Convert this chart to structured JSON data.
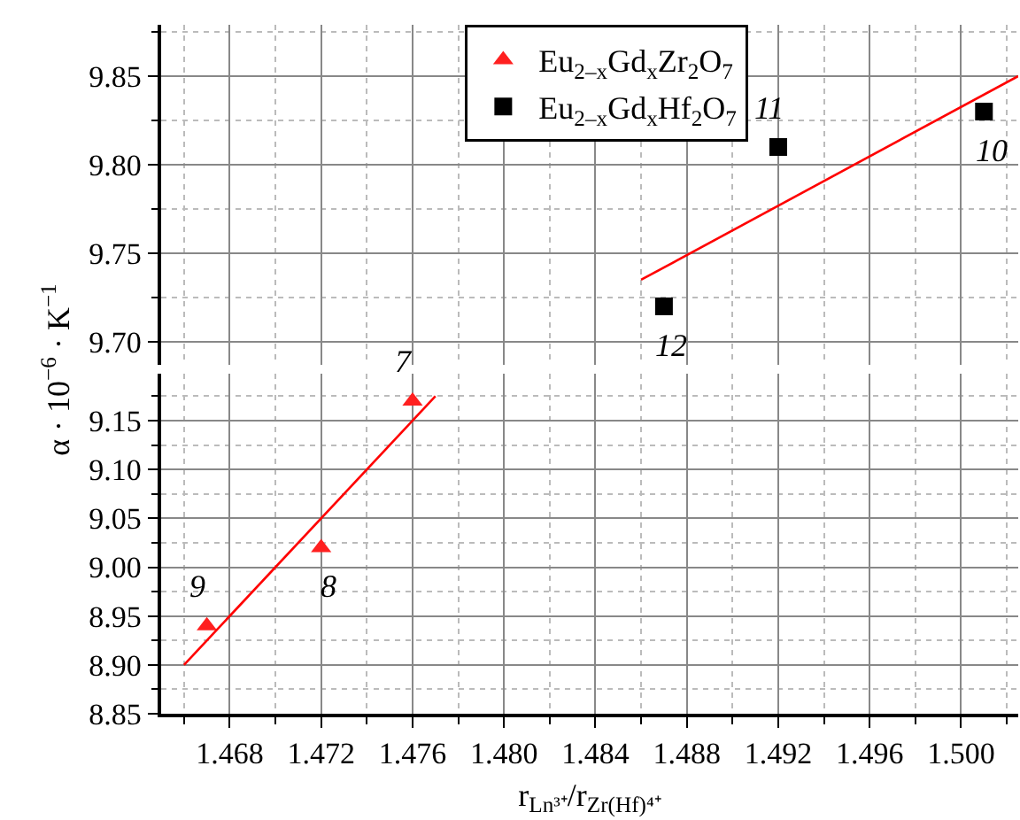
{
  "chart_data": [
    {
      "type": "scatter",
      "ylabel": "α · 10$^{−6}$ · K$^{−1}$",
      "xlim": [
        1.465,
        1.5025
      ],
      "ylim": [
        9.687,
        9.879
      ],
      "xticks": [
        {
          "value": 1.466,
          "label": null
        },
        1.468,
        {
          "value": 1.47,
          "label": null
        },
        1.472,
        {
          "value": 1.474,
          "label": null
        },
        1.476,
        {
          "value": 1.478,
          "label": null
        },
        1.48,
        {
          "value": 1.482,
          "label": null
        },
        1.484,
        {
          "value": 1.486,
          "label": null
        },
        1.488,
        {
          "value": 1.49,
          "label": null
        },
        1.492,
        {
          "value": 1.494,
          "label": null
        },
        1.496,
        {
          "value": 1.498,
          "label": null
        },
        1.5,
        {
          "value": 1.502,
          "label": null
        }
      ],
      "yticks": [
        {
          "value": 9.7,
          "label": "9.70"
        },
        {
          "value": 9.725,
          "label": null
        },
        9.75,
        {
          "value": 9.775,
          "label": null
        },
        {
          "value": 9.8,
          "label": "9.80"
        },
        {
          "value": 9.825,
          "label": null
        },
        9.85,
        {
          "value": 9.875,
          "label": null
        }
      ],
      "tick_labels": "y",
      "grid": true,
      "legend": "top",
      "series": [
        {
          "name": "Eu$_{2–x}$Gd$_{x}$Hf$_{2}$O$_{7}$",
          "color": "#000000",
          "marker": "square",
          "x": [
            1.487,
            1.492,
            1.501
          ],
          "values": [
            9.72,
            9.81,
            9.83
          ]
        },
        {
          "type": "line",
          "color": "#ff0000",
          "marker": "none",
          "x": [
            1.486,
            1.5025
          ],
          "values": [
            9.735,
            9.85
          ]
        }
      ],
      "annotations": [
        {
          "text": "12",
          "x": 1.487,
          "y": 9.72
        },
        {
          "text": "11",
          "x": 1.492,
          "y": 9.81
        },
        {
          "text": "10",
          "x": 1.501,
          "y": 9.83
        }
      ]
    },
    {
      "type": "scatter",
      "xlabel": "r$_{Ln³⁺}$/r$_{Zr(Hf)⁴⁺}$",
      "xlim": [
        1.465,
        1.5025
      ],
      "ylim": [
        8.85,
        9.198
      ],
      "xticks": [
        {
          "value": 1.466,
          "label": null
        },
        1.468,
        {
          "value": 1.47,
          "label": null
        },
        1.472,
        {
          "value": 1.474,
          "label": null
        },
        1.476,
        {
          "value": 1.478,
          "label": null
        },
        {
          "value": 1.48,
          "label": "1.480"
        },
        {
          "value": 1.482,
          "label": null
        },
        1.484,
        {
          "value": 1.486,
          "label": null
        },
        1.488,
        {
          "value": 1.49,
          "label": null
        },
        1.492,
        {
          "value": 1.494,
          "label": null
        },
        1.496,
        {
          "value": 1.498,
          "label": null
        },
        {
          "value": 1.5,
          "label": "1.500"
        },
        {
          "value": 1.502,
          "label": null
        }
      ],
      "yticks": [
        8.85,
        {
          "value": 8.875,
          "label": null
        },
        {
          "value": 8.9,
          "label": "8.90"
        },
        {
          "value": 8.925,
          "label": null
        },
        8.95,
        {
          "value": 8.975,
          "label": null
        },
        {
          "value": 9,
          "label": "9.00"
        },
        {
          "value": 9.025,
          "label": null
        },
        9.05,
        {
          "value": 9.075,
          "label": null
        },
        {
          "value": 9.1,
          "label": "9.10"
        },
        {
          "value": 9.125,
          "label": null
        },
        9.15,
        {
          "value": 9.175,
          "label": null
        }
      ],
      "grid": true,
      "legend": "top",
      "series": [
        {
          "name": "Eu$_{2–x}$Gd$_{x}$Zr$_{2}$O$_{7}$",
          "color": "#ff2020",
          "marker": "triangle",
          "x": [
            1.467,
            1.472,
            1.476
          ],
          "values": [
            8.94,
            9.02,
            9.17
          ]
        },
        {
          "type": "line",
          "color": "#ff0000",
          "marker": "none",
          "x": [
            1.466,
            1.477
          ],
          "values": [
            8.9,
            9.175
          ]
        }
      ],
      "annotations": [
        {
          "text": "9",
          "x": 1.467,
          "y": 8.94
        },
        {
          "text": "8",
          "x": 1.472,
          "y": 9.02
        },
        {
          "text": "7",
          "x": 1.476,
          "y": 9.17
        }
      ]
    }
  ]
}
